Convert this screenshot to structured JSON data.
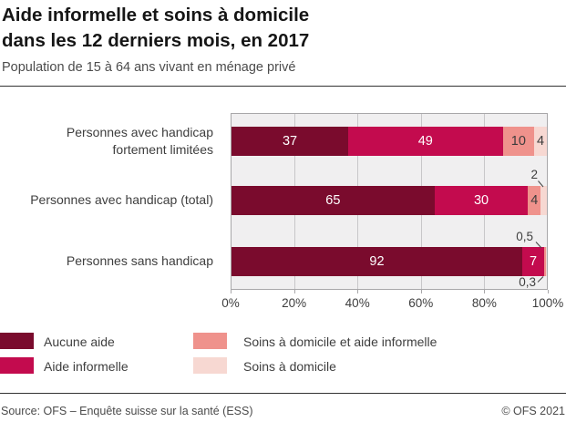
{
  "header": {
    "title": "Aide informelle et soins à domicile\ndans les 12 derniers mois, en 2017",
    "subtitle": "Population de 15 à 64 ans vivant en ménage privé"
  },
  "chart_data": {
    "type": "bar",
    "orientation": "horizontal",
    "stacked": true,
    "unit": "%",
    "categories": [
      "Personnes avec handicap\nfortement limitées",
      "Personnes avec handicap (total)",
      "Personnes sans handicap"
    ],
    "series": [
      {
        "name": "Aucune aide",
        "color": "#7a0b2d",
        "values": [
          37,
          65,
          92
        ]
      },
      {
        "name": "Aide informelle",
        "color": "#c30b4e",
        "values": [
          49,
          30,
          7
        ]
      },
      {
        "name": "Soins à domicile et aide informelle",
        "color": "#ef928c",
        "values": [
          10,
          4,
          0.5
        ]
      },
      {
        "name": "Soins à domicile",
        "color": "#f7d8d2",
        "values": [
          4,
          2,
          0.3
        ]
      }
    ],
    "value_labels": [
      [
        "37",
        "49",
        "10",
        "4"
      ],
      [
        "65",
        "30",
        "4",
        "2"
      ],
      [
        "92",
        "7",
        "0,5",
        "0,3"
      ]
    ],
    "x_ticks": [
      "0%",
      "20%",
      "40%",
      "60%",
      "80%",
      "100%"
    ],
    "xlim": [
      0,
      100
    ],
    "grid": true,
    "legend_position": "bottom"
  },
  "colors": {
    "plot_background": "#f0eff0",
    "gridline": "#c8c7c9",
    "plot_border": "#a8a7a9"
  },
  "footer": {
    "source": "Source: OFS – Enquête suisse sur la santé (ESS)",
    "copyright": "© OFS 2021"
  }
}
